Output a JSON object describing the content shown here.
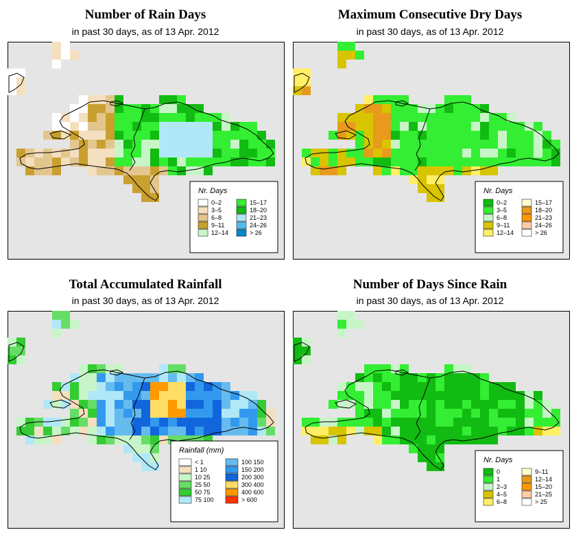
{
  "panels": [
    {
      "title": "Number of Rain Days",
      "subtitle": "in past 30 days, as of  13 Apr. 2012",
      "legend": {
        "title": "Nr. Days",
        "items": [
          {
            "label": "0–2",
            "color": "#ffffff"
          },
          {
            "label": "3–5",
            "color": "#f4dfbf"
          },
          {
            "label": "6–8",
            "color": "#e3c68e"
          },
          {
            "label": "9–11",
            "color": "#c9a030"
          },
          {
            "label": "12–14",
            "color": "#c8f5c8"
          },
          {
            "label": "15–17",
            "color": "#33ee33"
          },
          {
            "label": "18–20",
            "color": "#11bb11"
          },
          {
            "label": "21–23",
            "color": "#b0e8f8"
          },
          {
            "label": "24–26",
            "color": "#55bbee"
          },
          {
            "label": "> 26",
            "color": "#0088cc"
          }
        ]
      }
    },
    {
      "title": "Maximum Consecutive Dry Days",
      "subtitle": "in past 30 days, as of  13 Apr. 2012",
      "legend": {
        "title": "Nr. Days",
        "items": [
          {
            "label": "0–2",
            "color": "#11bb11"
          },
          {
            "label": "3–5",
            "color": "#33ee33"
          },
          {
            "label": "6–8",
            "color": "#c8f5c8"
          },
          {
            "label": "9–11",
            "color": "#d8c400"
          },
          {
            "label": "12–14",
            "color": "#ffee66"
          },
          {
            "label": "15–17",
            "color": "#ffffcc"
          },
          {
            "label": "18–20",
            "color": "#e89a1c"
          },
          {
            "label": "21–23",
            "color": "#ff9900"
          },
          {
            "label": "24–26",
            "color": "#ffccaa"
          },
          {
            "label": "> 26",
            "color": "#ffffff"
          }
        ]
      }
    },
    {
      "title": "Total Accumulated Rainfall",
      "subtitle": "in past 30 days, as of  13 Apr. 2012",
      "legend": {
        "title": "Rainfall (mm)",
        "items": [
          {
            "label": "< 1",
            "color": "#ffffff"
          },
          {
            "label": "1   10",
            "color": "#f4dfbf"
          },
          {
            "label": "10   25",
            "color": "#c8f5c8"
          },
          {
            "label": "25   50",
            "color": "#66dd66"
          },
          {
            "label": "50   75",
            "color": "#33cc33"
          },
          {
            "label": "75  100",
            "color": "#b0e8f8"
          },
          {
            "label": "100  150",
            "color": "#66bbee"
          },
          {
            "label": "150  200",
            "color": "#3399ee"
          },
          {
            "label": "200  300",
            "color": "#1166dd"
          },
          {
            "label": "300  400",
            "color": "#ffdd66"
          },
          {
            "label": "400  600",
            "color": "#ff9900"
          },
          {
            "label": "> 600",
            "color": "#ff3300"
          }
        ]
      }
    },
    {
      "title": "Number of Days Since Rain",
      "subtitle": "in past 30 days, as of  13 Apr. 2012",
      "legend": {
        "title": "Nr. Days",
        "items": [
          {
            "label": "0",
            "color": "#11bb11"
          },
          {
            "label": "1",
            "color": "#33ee33"
          },
          {
            "label": "2–3",
            "color": "#c8f5c8"
          },
          {
            "label": "4–5",
            "color": "#d8c400"
          },
          {
            "label": "6–8",
            "color": "#ffee66"
          },
          {
            "label": "9–11",
            "color": "#ffffcc"
          },
          {
            "label": "12–14",
            "color": "#e89a1c"
          },
          {
            "label": "15–20",
            "color": "#ff9900"
          },
          {
            "label": "21–25",
            "color": "#ffccaa"
          },
          {
            "label": "> 25",
            "color": "#ffffff"
          }
        ]
      }
    }
  ],
  "colors": {
    "ocean": "#e5e5e5",
    "border": "#000000"
  }
}
